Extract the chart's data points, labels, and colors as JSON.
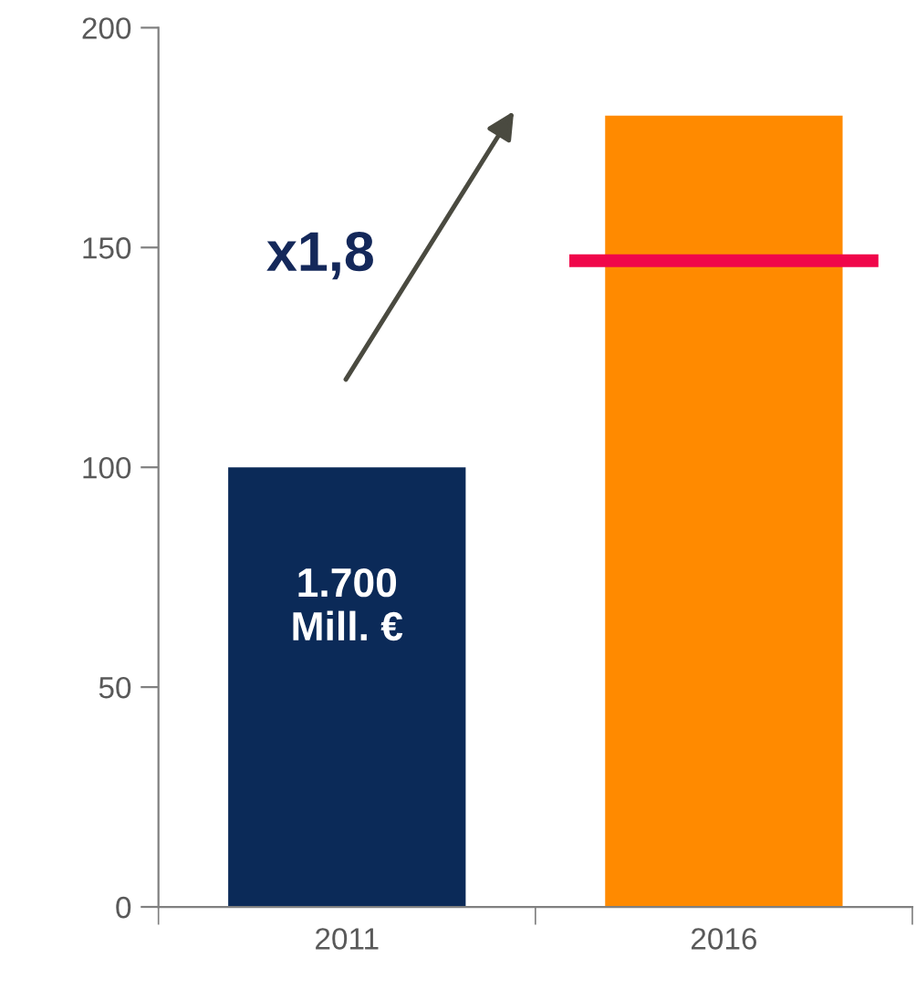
{
  "chart_data": {
    "type": "bar",
    "categories": [
      "2011",
      "2016"
    ],
    "values": [
      100,
      180
    ],
    "colors": [
      "#0b2a58",
      "#ff8a00"
    ],
    "ylim": [
      0,
      200
    ],
    "yticks": [
      0,
      50,
      100,
      150,
      200
    ],
    "grid": false,
    "legend": false,
    "ref_lines": [
      {
        "axis": "y",
        "value": 147,
        "color": "#f0064a"
      }
    ],
    "annotations": [
      "x1,8",
      "1.700\nMill. €"
    ]
  }
}
